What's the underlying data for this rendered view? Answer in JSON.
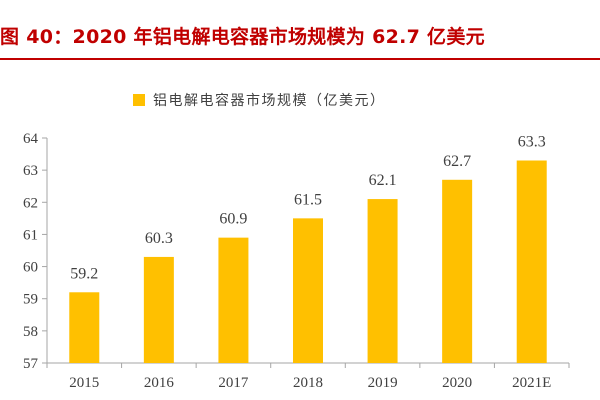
{
  "header": {
    "title": "图 40：2020 年铝电解电容器市场规模为 62.7 亿美元"
  },
  "colors": {
    "title": "#c00000",
    "bar": "#ffc000",
    "axis": "#a6a6a6",
    "text": "#404040"
  },
  "chart_data": {
    "type": "bar",
    "categories": [
      "2015",
      "2016",
      "2017",
      "2018",
      "2019",
      "2020",
      "2021E"
    ],
    "series": [
      {
        "name": "铝电解电容器市场规模（亿美元）",
        "values": [
          59.2,
          60.3,
          60.9,
          61.5,
          62.1,
          62.7,
          63.3
        ]
      }
    ],
    "value_labels": [
      "59.2",
      "60.3",
      "60.9",
      "61.5",
      "62.1",
      "62.7",
      "63.3"
    ],
    "title": "",
    "xlabel": "",
    "ylabel": "",
    "ylim": [
      57,
      64
    ],
    "yticks": [
      57,
      58,
      59,
      60,
      61,
      62,
      63,
      64
    ],
    "grid": false,
    "legend_position": "top-center"
  }
}
